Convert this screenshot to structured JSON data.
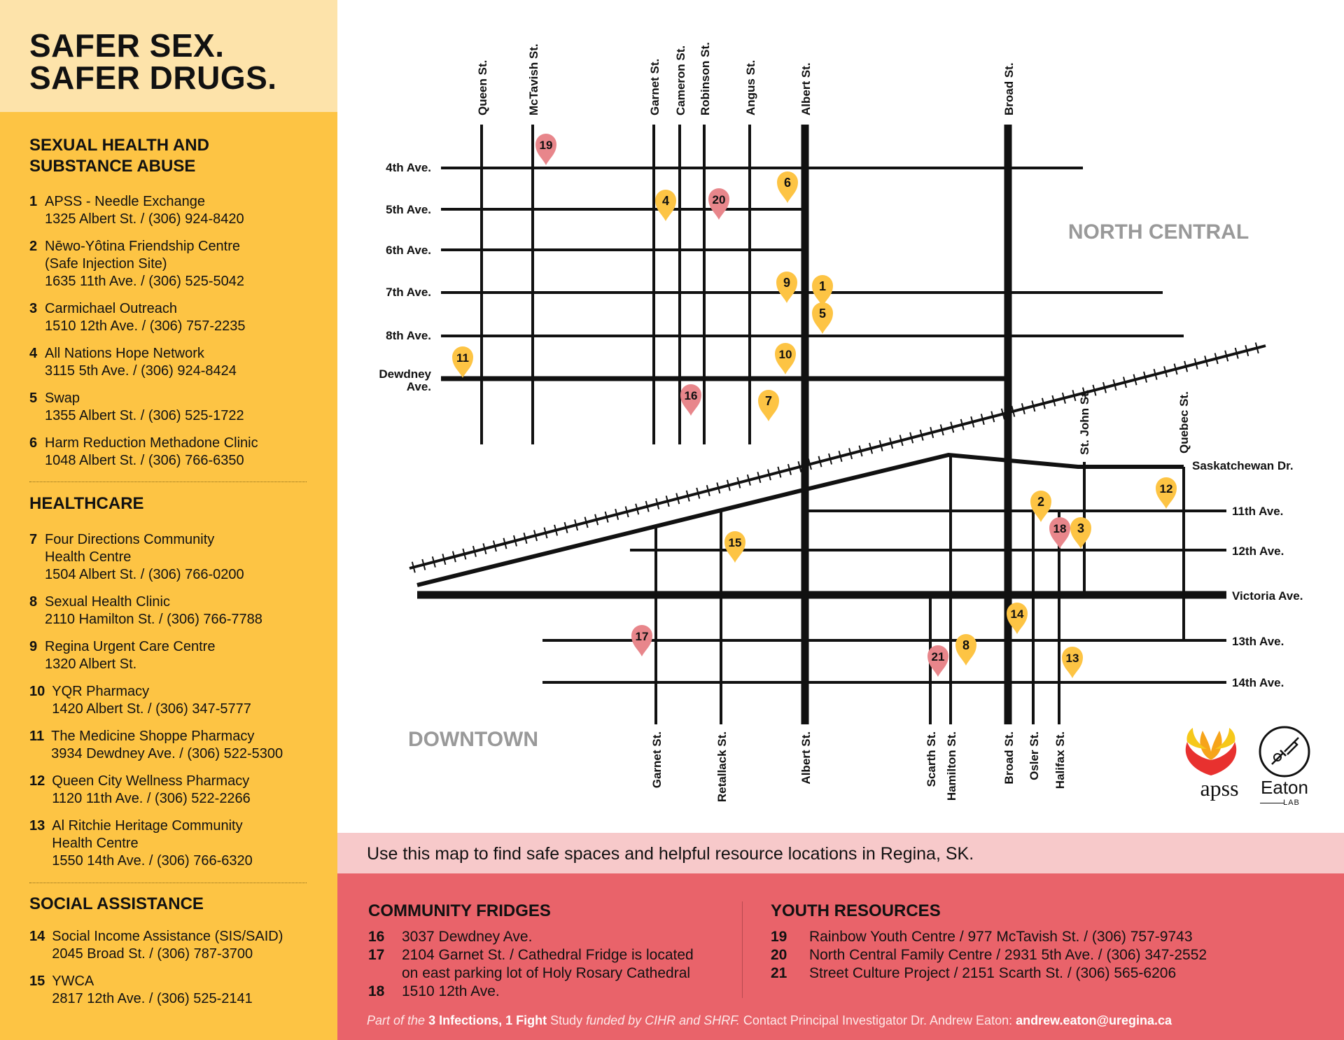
{
  "title": {
    "line1": "SAFER SEX.",
    "line2": "SAFER DRUGS."
  },
  "sections": {
    "sexual_health": {
      "heading": "SEXUAL HEALTH AND\nSUBSTANCE ABUSE",
      "items": [
        {
          "num": "1",
          "text": "APSS - Needle Exchange\n1325 Albert St. / (306) 924-8420"
        },
        {
          "num": "2",
          "text": "Nēwo-Yôtina Friendship Centre\n(Safe Injection Site)\n1635 11th Ave. / (306) 525-5042"
        },
        {
          "num": "3",
          "text": "Carmichael Outreach\n1510 12th Ave. / (306) 757-2235"
        },
        {
          "num": "4",
          "text": "All Nations Hope Network\n3115 5th Ave. / (306) 924-8424"
        },
        {
          "num": "5",
          "text": "Swap\n1355 Albert St. / (306) 525-1722"
        },
        {
          "num": "6",
          "text": "Harm Reduction Methadone Clinic\n1048 Albert St. / (306) 766-6350"
        }
      ]
    },
    "healthcare": {
      "heading": "HEALTHCARE",
      "items": [
        {
          "num": "7",
          "text": "Four Directions Community\nHealth Centre\n1504 Albert St. / (306) 766-0200"
        },
        {
          "num": "8",
          "text": "Sexual Health Clinic\n2110 Hamilton St. / (306) 766-7788"
        },
        {
          "num": "9",
          "text": "Regina Urgent Care Centre\n1320 Albert St."
        },
        {
          "num": "10",
          "text": "YQR Pharmacy\n1420 Albert St. / (306) 347-5777"
        },
        {
          "num": "11",
          "text": "The Medicine Shoppe Pharmacy\n3934 Dewdney Ave. / (306) 522-5300"
        },
        {
          "num": "12",
          "text": "Queen City Wellness Pharmacy\n1120 11th Ave. / (306) 522-2266"
        },
        {
          "num": "13",
          "text": "Al Ritchie Heritage Community\nHealth Centre\n1550 14th Ave. / (306) 766-6320"
        }
      ]
    },
    "social": {
      "heading": "SOCIAL ASSISTANCE",
      "items": [
        {
          "num": "14",
          "text": "Social Income Assistance (SIS/SAID)\n2045 Broad St. / (306) 787-3700"
        },
        {
          "num": "15",
          "text": "YWCA\n2817 12th Ave. / (306) 525-2141"
        }
      ]
    }
  },
  "map": {
    "area_labels": {
      "north_central": "NORTH CENTRAL",
      "downtown": "DOWNTOWN"
    },
    "top_streets": [
      {
        "id": "queen",
        "name": "Queen St."
      },
      {
        "id": "mctavish",
        "name": "McTavish St."
      },
      {
        "id": "garnet_top",
        "name": "Garnet St."
      },
      {
        "id": "cameron",
        "name": "Cameron St."
      },
      {
        "id": "robinson",
        "name": "Robinson St."
      },
      {
        "id": "angus",
        "name": "Angus St."
      },
      {
        "id": "albert_top",
        "name": "Albert St."
      },
      {
        "id": "broad_top",
        "name": "Broad St."
      }
    ],
    "mid_streets": [
      {
        "id": "stjohn",
        "name": "St. John St."
      },
      {
        "id": "quebec",
        "name": "Quebec St."
      }
    ],
    "bottom_streets": [
      {
        "id": "garnet_bot",
        "name": "Garnet St."
      },
      {
        "id": "retallack",
        "name": "Retallack St."
      },
      {
        "id": "albert_bot",
        "name": "Albert St."
      },
      {
        "id": "scarth",
        "name": "Scarth St."
      },
      {
        "id": "hamilton",
        "name": "Hamilton St."
      },
      {
        "id": "broad_bot",
        "name": "Broad St."
      },
      {
        "id": "osler",
        "name": "Osler St."
      },
      {
        "id": "halifax",
        "name": "Halifax St."
      }
    ],
    "left_avenues": [
      {
        "id": "4th",
        "name": "4th Ave."
      },
      {
        "id": "5th",
        "name": "5th Ave."
      },
      {
        "id": "6th",
        "name": "6th Ave."
      },
      {
        "id": "7th",
        "name": "7th Ave."
      },
      {
        "id": "8th",
        "name": "8th Ave."
      },
      {
        "id": "dewdney1",
        "name": "Dewdney"
      },
      {
        "id": "dewdney2",
        "name": "Ave."
      }
    ],
    "right_avenues": [
      {
        "id": "sask",
        "name": "Saskatchewan Dr."
      },
      {
        "id": "11th",
        "name": "11th Ave."
      },
      {
        "id": "12th",
        "name": "12th Ave."
      },
      {
        "id": "victoria",
        "name": "Victoria Ave."
      },
      {
        "id": "13th",
        "name": "13th Ave."
      },
      {
        "id": "14th",
        "name": "14th Ave."
      }
    ],
    "pins": [
      {
        "num": "1",
        "category": "health"
      },
      {
        "num": "2",
        "category": "health"
      },
      {
        "num": "3",
        "category": "health"
      },
      {
        "num": "4",
        "category": "health"
      },
      {
        "num": "5",
        "category": "health"
      },
      {
        "num": "6",
        "category": "health"
      },
      {
        "num": "7",
        "category": "health"
      },
      {
        "num": "8",
        "category": "health"
      },
      {
        "num": "9",
        "category": "health"
      },
      {
        "num": "10",
        "category": "health"
      },
      {
        "num": "11",
        "category": "health"
      },
      {
        "num": "12",
        "category": "health"
      },
      {
        "num": "13",
        "category": "health"
      },
      {
        "num": "14",
        "category": "health"
      },
      {
        "num": "15",
        "category": "health"
      },
      {
        "num": "16",
        "category": "fridge"
      },
      {
        "num": "17",
        "category": "fridge"
      },
      {
        "num": "18",
        "category": "fridge"
      },
      {
        "num": "19",
        "category": "youth"
      },
      {
        "num": "20",
        "category": "youth"
      },
      {
        "num": "21",
        "category": "youth"
      }
    ]
  },
  "tagline": "Use this map to find safe spaces and helpful resource locations in Regina, SK.",
  "community_fridges": {
    "heading": "COMMUNITY FRIDGES",
    "items": [
      {
        "num": "16",
        "text": "3037 Dewdney Ave."
      },
      {
        "num": "17",
        "text": "2104 Garnet St. / Cathedral Fridge is located\non east parking lot of Holy Rosary Cathedral"
      },
      {
        "num": "18",
        "text": "1510 12th Ave."
      }
    ]
  },
  "youth_resources": {
    "heading": "YOUTH RESOURCES",
    "items": [
      {
        "num": "19",
        "text": "Rainbow Youth Centre / 977 McTavish St. / (306) 757-9743"
      },
      {
        "num": "20",
        "text": "North Central Family Centre / 2931 5th Ave.  / (306) 347-2552"
      },
      {
        "num": "21",
        "text": "Street Culture Project / 2151 Scarth St.  / (306) 565-6206"
      }
    ]
  },
  "credit": {
    "p1": "Part of the ",
    "p2": "3 Infections, 1 Fight",
    "p3": " Study ",
    "p4": "funded by CIHR and SHRF.",
    "p5": "  Contact Principal Investigator Dr. Andrew Eaton: ",
    "p6": "andrew.eaton@uregina.ca"
  },
  "logos": {
    "apss": "apss",
    "eaton": "Eaton",
    "eaton_sub": "LAB"
  },
  "colors": {
    "sidebar": "#fdc444",
    "title_box": "#fde3aa",
    "pin_yellow": "#fdc444",
    "pin_pink": "#e8868b",
    "tagline_band": "#f7c9ca",
    "bottom_band": "#e9636a"
  }
}
